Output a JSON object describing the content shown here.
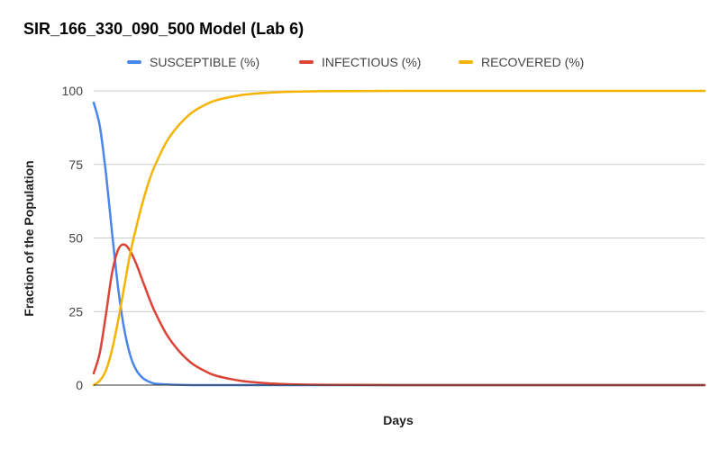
{
  "chart_data": {
    "type": "line",
    "title": "SIR_166_330_090_500 Model (Lab 6)",
    "xlabel": "Days",
    "ylabel": "Fraction of the Population",
    "xlim": [
      0,
      500
    ],
    "ylim": [
      0,
      100
    ],
    "yticks": [
      "0",
      "25",
      "50",
      "75",
      "100"
    ],
    "grid": true,
    "legend_position": "top",
    "x": [
      0,
      5,
      10,
      15,
      20,
      25,
      30,
      35,
      40,
      45,
      50,
      60,
      70,
      80,
      90,
      100,
      120,
      140,
      160,
      180,
      200,
      250,
      300,
      350,
      400,
      450,
      500
    ],
    "series": [
      {
        "name": "SUSCEPTIBLE (%)",
        "color": "#4a86e8",
        "values": [
          96,
          88,
          72,
          52,
          33,
          19,
          10,
          5,
          2.5,
          1.2,
          0.5,
          0.2,
          0.1,
          0,
          0,
          0,
          0,
          0,
          0,
          0,
          0,
          0,
          0,
          0,
          0,
          0,
          0
        ]
      },
      {
        "name": "INFECTIOUS (%)",
        "color": "#db4437",
        "values": [
          4,
          11,
          24,
          38,
          46,
          47.8,
          45.5,
          41,
          35.5,
          30,
          25,
          17,
          11.5,
          7.5,
          5,
          3.2,
          1.5,
          0.7,
          0.3,
          0.15,
          0.1,
          0,
          0,
          0,
          0,
          0,
          0
        ]
      },
      {
        "name": "RECOVERED (%)",
        "color": "#f4b400",
        "values": [
          0,
          1.5,
          5,
          12,
          22,
          33.5,
          45,
          54,
          62,
          69,
          74.5,
          83,
          88.5,
          92.5,
          95,
          96.8,
          98.5,
          99.3,
          99.7,
          99.85,
          99.9,
          100,
          100,
          100,
          100,
          100,
          100
        ]
      }
    ]
  }
}
